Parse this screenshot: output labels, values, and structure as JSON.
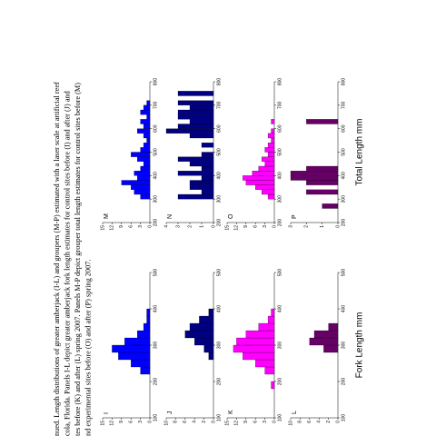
{
  "caption": [
    "nued. Length distributions of greater amberjack (I-L) and groupers (M-P) estimated with a laser scale at artificial reef",
    "cola, Florida. Panels I-L depict greater amberjack fork length estimates for control sites before (I) and after (J) and",
    "tes before (K) and after (L) spring 2007. Panels M-P depict grouper total length estimates for control sites before (M)",
    "nd experimental sites before (O) and after (P) spring 2007."
  ],
  "chart_data": [
    {
      "type": "histogram",
      "label": "I",
      "color": "#0000ff",
      "bins": [
        220,
        240,
        260,
        280,
        300,
        320,
        340,
        360,
        380,
        400
      ],
      "values": [
        3,
        6,
        10,
        12,
        8,
        4,
        2,
        1,
        1
      ],
      "xlim": [
        100,
        500
      ],
      "xticks": [
        100,
        200,
        300,
        400,
        500
      ],
      "ylim": [
        0,
        15
      ],
      "yticks": [
        0,
        3,
        6,
        9,
        12,
        15
      ]
    },
    {
      "type": "histogram",
      "label": "J",
      "color": "#000080",
      "bins": [
        260,
        280,
        300,
        320,
        340,
        360,
        380,
        400
      ],
      "values": [
        1,
        2,
        4,
        6,
        5,
        3,
        1
      ],
      "xlim": [
        100,
        500
      ],
      "xticks": [
        100,
        200,
        300,
        400,
        500
      ],
      "ylim": [
        0,
        10
      ],
      "yticks": [
        0,
        2,
        4,
        6,
        8,
        10
      ]
    },
    {
      "type": "histogram",
      "label": "K",
      "color": "#ff00ff",
      "bins": [
        180,
        200,
        220,
        240,
        260,
        280,
        300,
        320,
        340,
        360,
        380,
        400
      ],
      "values": [
        1,
        0,
        3,
        6,
        10,
        13,
        12,
        9,
        5,
        2,
        1
      ],
      "xlim": [
        100,
        500
      ],
      "xticks": [
        100,
        200,
        300,
        400,
        500
      ],
      "ylim": [
        0,
        15
      ],
      "yticks": [
        0,
        3,
        6,
        9,
        12,
        15
      ]
    },
    {
      "type": "histogram",
      "label": "L",
      "color": "#660066",
      "bins": [
        280,
        300,
        320,
        340,
        360
      ],
      "values": [
        3,
        6,
        5,
        2
      ],
      "xlim": [
        100,
        500
      ],
      "xticks": [
        100,
        200,
        300,
        400,
        500
      ],
      "ylim": [
        0,
        10
      ],
      "yticks": [
        0,
        2,
        4,
        6,
        8,
        10
      ],
      "xlabel": "Fork Length mm"
    },
    {
      "type": "histogram",
      "label": "M",
      "color": "#0000ff",
      "bins": [
        300,
        320,
        340,
        360,
        380,
        400,
        420,
        440,
        460,
        480,
        500,
        520,
        540,
        560,
        580,
        600,
        620,
        640,
        660,
        680,
        700,
        720
      ],
      "values": [
        3,
        5,
        6,
        9,
        4,
        5,
        3,
        2,
        4,
        6,
        3,
        2,
        1,
        2,
        4,
        2,
        3,
        1,
        3,
        2,
        1
      ],
      "xlim": [
        200,
        800
      ],
      "xticks": [
        200,
        300,
        400,
        500,
        600,
        700,
        800
      ],
      "ylim": [
        0,
        15
      ],
      "yticks": [
        0,
        3,
        6,
        9,
        12,
        15
      ]
    },
    {
      "type": "histogram",
      "label": "N",
      "color": "#000080",
      "bins": [
        300,
        320,
        340,
        360,
        380,
        400,
        420,
        440,
        460,
        480,
        500,
        520,
        540,
        560,
        580,
        600,
        620,
        640,
        660,
        680,
        700,
        720,
        740,
        760
      ],
      "values": [
        3,
        1,
        2,
        2,
        1,
        3,
        1,
        2,
        3,
        1,
        0,
        1,
        0,
        2,
        4,
        3,
        2,
        3,
        3,
        2,
        3,
        0,
        3
      ],
      "xlim": [
        200,
        800
      ],
      "xticks": [
        200,
        300,
        400,
        500,
        600,
        700,
        800
      ],
      "ylim": [
        0,
        4
      ],
      "yticks": [
        0,
        1,
        2,
        3,
        4
      ]
    },
    {
      "type": "histogram",
      "label": "O",
      "color": "#ff00ff",
      "bins": [
        300,
        320,
        340,
        360,
        380,
        400,
        420,
        440,
        460,
        480,
        500,
        520,
        540,
        560,
        580,
        600,
        620,
        640
      ],
      "values": [
        2,
        4,
        6,
        9,
        10,
        7,
        5,
        3,
        4,
        2,
        3,
        2,
        1,
        2,
        1,
        0,
        1
      ],
      "xlim": [
        200,
        800
      ],
      "xticks": [
        200,
        300,
        400,
        500,
        600,
        700,
        800
      ],
      "ylim": [
        0,
        15
      ],
      "yticks": [
        0,
        3,
        6,
        9,
        12,
        15
      ]
    },
    {
      "type": "histogram",
      "label": "P",
      "color": "#660066",
      "bins": [
        260,
        280,
        300,
        320,
        340,
        360,
        380,
        400,
        420,
        440,
        460,
        480,
        500,
        520,
        540,
        560,
        580,
        600,
        620,
        640
      ],
      "values": [
        1,
        0,
        0,
        2,
        0,
        2,
        3,
        3,
        2,
        0,
        0,
        0,
        0,
        0,
        0,
        0,
        0,
        0,
        2
      ],
      "xlim": [
        200,
        800
      ],
      "xticks": [
        200,
        300,
        400,
        500,
        600,
        700,
        800
      ],
      "ylim": [
        0,
        3
      ],
      "yticks": [
        0,
        1,
        2,
        3
      ],
      "xlabel": "Total Length mm"
    }
  ]
}
